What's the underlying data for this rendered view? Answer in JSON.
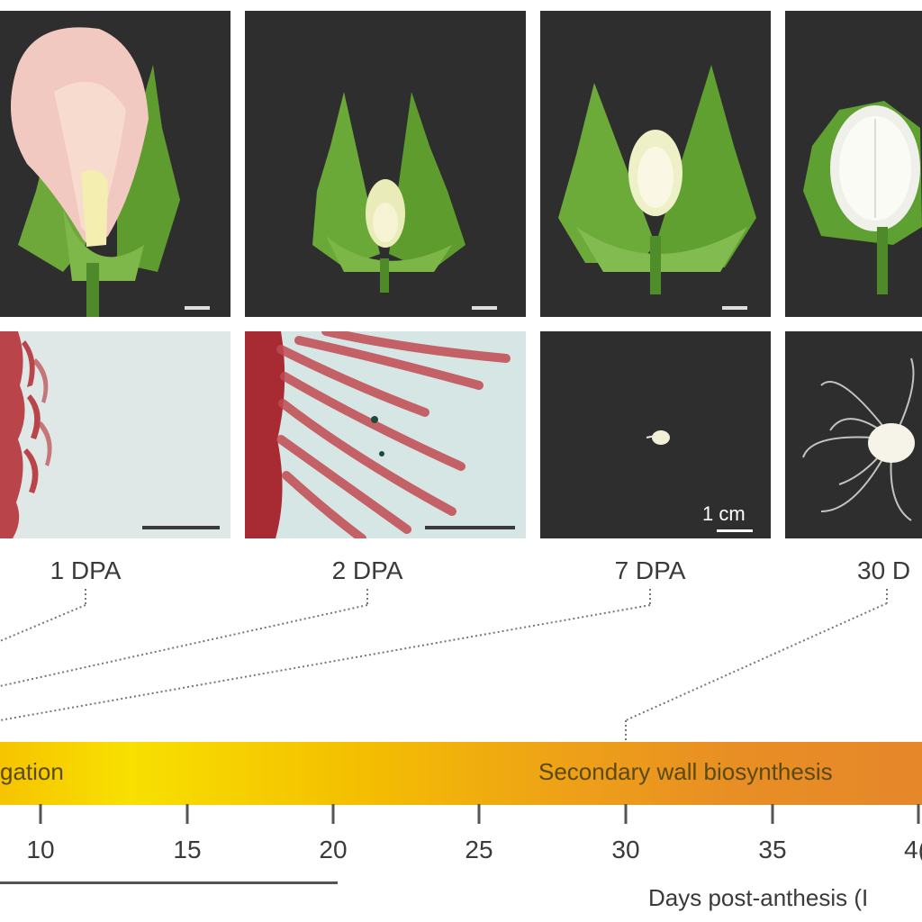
{
  "stages": [
    {
      "label": "1 DPA"
    },
    {
      "label": "2 DPA"
    },
    {
      "label": "7 DPA"
    },
    {
      "label": "30 D"
    }
  ],
  "scale_label": "1 cm",
  "phases": {
    "elongation": "gation",
    "secondary": "Secondary wall biosynthesis"
  },
  "axis": {
    "ticks": [
      "10",
      "15",
      "20",
      "25",
      "30",
      "35",
      "4("
    ],
    "title": "Days post-anthesis (I"
  },
  "colors": {
    "panel_dark": "#2e2e2e",
    "fiber_red": "#b5343a",
    "bar_start": "#f8e000",
    "bar_end": "#e6872a"
  }
}
